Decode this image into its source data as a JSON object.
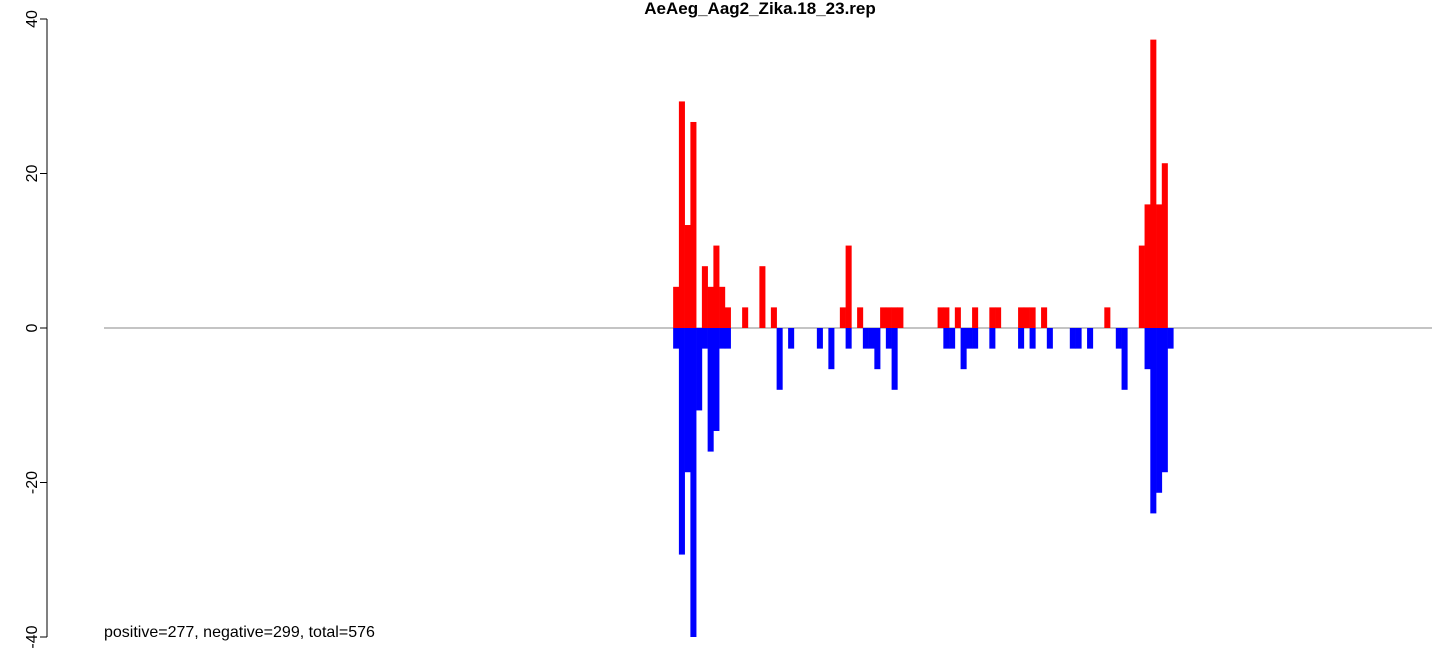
{
  "chart_data": {
    "type": "bar",
    "title": "AeAeg_Aag2_Zika.18_23.rep",
    "annotation": "positive=277, negative=299, total=576",
    "x": [
      99,
      100,
      101,
      102,
      103,
      104,
      105,
      106,
      107,
      108,
      111,
      114,
      116,
      117,
      119,
      124,
      126,
      128,
      129,
      131,
      132,
      133,
      134,
      135,
      136,
      137,
      138,
      145,
      146,
      147,
      148,
      149,
      150,
      151,
      154,
      155,
      159,
      160,
      161,
      163,
      164,
      168,
      169,
      171,
      174,
      176,
      177,
      180,
      181,
      182,
      183,
      184,
      185
    ],
    "series": [
      {
        "color": "#ff0000",
        "values": [
          5.33,
          29.33,
          13.33,
          26.67,
          null,
          8,
          5.33,
          10.67,
          5.33,
          2.67,
          2.67,
          8,
          2.67,
          null,
          null,
          null,
          null,
          2.67,
          10.67,
          2.67,
          null,
          null,
          null,
          2.67,
          2.67,
          2.67,
          2.67,
          2.67,
          2.67,
          null,
          2.67,
          null,
          null,
          2.67,
          2.67,
          2.67,
          2.67,
          2.67,
          2.67,
          2.67,
          null,
          null,
          null,
          null,
          2.67,
          null,
          null,
          10.67,
          16,
          37.33,
          16,
          21.33,
          null
        ]
      },
      {
        "color": "#0000ff",
        "values": [
          -2.67,
          -29.33,
          -18.67,
          -40,
          -10.67,
          -2.67,
          -16,
          -13.33,
          -2.67,
          -2.67,
          null,
          null,
          null,
          -8,
          -2.67,
          -2.67,
          -5.33,
          null,
          -2.67,
          null,
          -2.67,
          -2.67,
          -5.33,
          null,
          -2.67,
          -8,
          null,
          null,
          -2.67,
          -2.67,
          null,
          -5.33,
          -2.67,
          -2.67,
          -2.67,
          null,
          -2.67,
          null,
          -2.67,
          null,
          -2.67,
          -2.67,
          -2.67,
          -2.67,
          null,
          -2.67,
          -8,
          null,
          -5.33,
          -24,
          -21.33,
          -18.67,
          -2.67
        ]
      }
    ],
    "xlim": [
      0,
      231
    ],
    "ylim": [
      -40,
      40
    ],
    "yticks": [
      -40,
      -20,
      0,
      20,
      40
    ]
  }
}
